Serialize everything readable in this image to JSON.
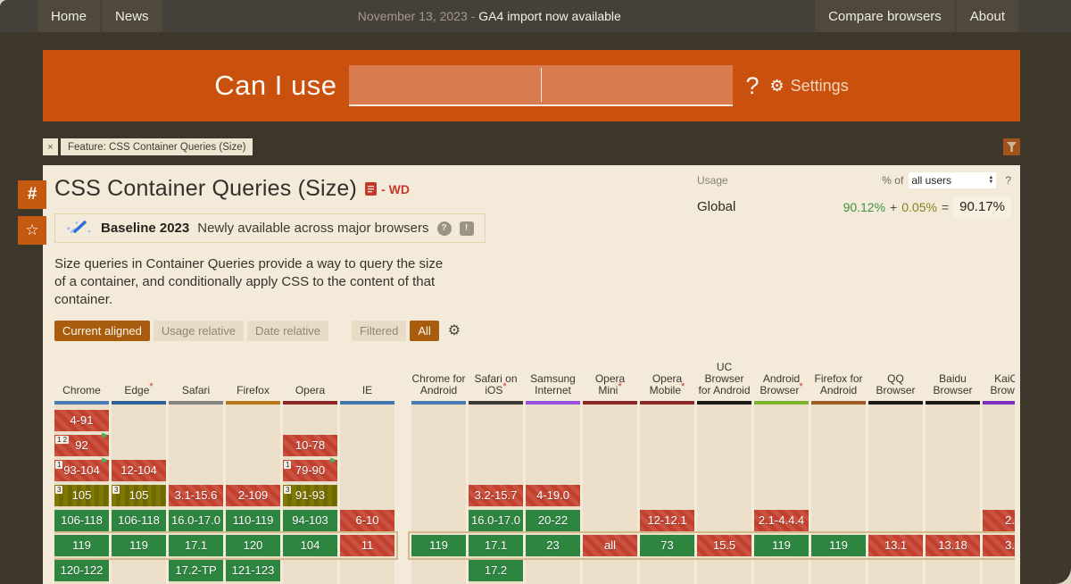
{
  "nav": {
    "home_label": "Home",
    "news_label": "News",
    "date_prefix": "November 13, 2023 -",
    "announcement": "GA4 import now available",
    "compare_label": "Compare browsers",
    "about_label": "About"
  },
  "header": {
    "logo": "Can I use",
    "question_mark": "?",
    "settings_label": "Settings"
  },
  "feature_tag": {
    "close_label": "×",
    "label": "Feature: CSS Container Queries (Size)"
  },
  "side": {
    "hash": "#",
    "star": "☆"
  },
  "page": {
    "title": "CSS Container Queries (Size)",
    "spec_status": "- WD",
    "baseline_title": "Baseline 2023",
    "baseline_subtitle": "Newly available across major browsers",
    "baseline_help": "?",
    "baseline_report": "!",
    "description": "Size queries in Container Queries provide a way to query the size of a container, and conditionally apply CSS to the content of that container."
  },
  "usage": {
    "label": "Usage",
    "percent_of": "% of",
    "select_value": "all users",
    "help": "?",
    "scope": "Global",
    "supported": "90.12%",
    "plus": "+",
    "partial": "0.05%",
    "equals": "=",
    "total": "90.17%"
  },
  "toolbar": {
    "current": "Current aligned",
    "usage_rel": "Usage relative",
    "date_rel": "Date relative",
    "filtered": "Filtered",
    "all": "All"
  },
  "colors": {
    "accent_orange": "#c9510d",
    "supported_green": "#2e8540",
    "unsupported_red": "#c4452f",
    "partial_olive": "#7a7400",
    "usage_green": "#3e9141",
    "usage_olive": "#85801f"
  },
  "table": {
    "current_row_index": 5,
    "sections": [
      {
        "name": "desktop",
        "columns": [
          {
            "label": "Chrome",
            "bar": "#4a7ab6",
            "star": false
          },
          {
            "label": "Edge",
            "bar": "#2d5f9a",
            "star": true
          },
          {
            "label": "Safari",
            "bar": "#858585",
            "star": false
          },
          {
            "label": "Firefox",
            "bar": "#b5791c",
            "star": false
          },
          {
            "label": "Opera",
            "bar": "#8e2727",
            "star": false
          },
          {
            "label": "IE",
            "bar": "#3f77ae",
            "star": false
          }
        ],
        "rows": [
          [
            {
              "t": "4-91",
              "s": "n"
            },
            null,
            null,
            null,
            null,
            null
          ],
          [
            {
              "t": "92",
              "s": "n",
              "notes": "1 2",
              "flag": true
            },
            null,
            null,
            null,
            {
              "t": "10-78",
              "s": "n"
            },
            null
          ],
          [
            {
              "t": "93-104",
              "s": "n",
              "notes": "1",
              "flag": true
            },
            {
              "t": "12-104",
              "s": "n"
            },
            null,
            null,
            {
              "t": "79-90",
              "s": "n",
              "notes": "1",
              "flag": true
            },
            null
          ],
          [
            {
              "t": "105",
              "s": "a",
              "notes": "3"
            },
            {
              "t": "105",
              "s": "a",
              "notes": "3"
            },
            {
              "t": "3.1-15.6",
              "s": "n"
            },
            {
              "t": "2-109",
              "s": "n"
            },
            {
              "t": "91-93",
              "s": "a",
              "notes": "3"
            },
            null
          ],
          [
            {
              "t": "106-118",
              "s": "y"
            },
            {
              "t": "106-118",
              "s": "y"
            },
            {
              "t": "16.0-17.0",
              "s": "y"
            },
            {
              "t": "110-119",
              "s": "y"
            },
            {
              "t": "94-103",
              "s": "y"
            },
            {
              "t": "6-10",
              "s": "n"
            }
          ],
          [
            {
              "t": "119",
              "s": "y"
            },
            {
              "t": "119",
              "s": "y"
            },
            {
              "t": "17.1",
              "s": "y"
            },
            {
              "t": "120",
              "s": "y"
            },
            {
              "t": "104",
              "s": "y"
            },
            {
              "t": "11",
              "s": "n"
            }
          ],
          [
            {
              "t": "120-122",
              "s": "y"
            },
            null,
            {
              "t": "17.2-TP",
              "s": "y"
            },
            {
              "t": "121-123",
              "s": "y"
            },
            null,
            null
          ]
        ]
      },
      {
        "name": "mobile",
        "columns": [
          {
            "label": "Chrome for Android",
            "bar": "#4a7ab6",
            "star": false
          },
          {
            "label": "Safari on iOS",
            "bar": "#3a3a3a",
            "star": true
          },
          {
            "label": "Samsung Internet",
            "bar": "#9753e0",
            "star": false
          },
          {
            "label": "Opera Mini",
            "bar": "#8e2727",
            "star": true
          },
          {
            "label": "Opera Mobile",
            "bar": "#8e2727",
            "star": true
          },
          {
            "label": "UC Browser for Android",
            "bar": "#1b1b1b",
            "star": false
          },
          {
            "label": "Android Browser",
            "bar": "#79b42a",
            "star": true
          },
          {
            "label": "Firefox for Android",
            "bar": "#9c5a24",
            "star": false
          },
          {
            "label": "QQ Browser",
            "bar": "#1b1b1b",
            "star": false
          },
          {
            "label": "Baidu Browser",
            "bar": "#1b1b1b",
            "star": false
          },
          {
            "label": "KaiOS Browser",
            "bar": "#7b2fbe",
            "star": false
          }
        ],
        "rows": [
          [
            null,
            null,
            null,
            null,
            null,
            null,
            null,
            null,
            null,
            null,
            null
          ],
          [
            null,
            null,
            null,
            null,
            null,
            null,
            null,
            null,
            null,
            null,
            null
          ],
          [
            null,
            null,
            null,
            null,
            null,
            null,
            null,
            null,
            null,
            null,
            null
          ],
          [
            null,
            {
              "t": "3.2-15.7",
              "s": "n"
            },
            {
              "t": "4-19.0",
              "s": "n"
            },
            null,
            null,
            null,
            null,
            null,
            null,
            null,
            null
          ],
          [
            null,
            {
              "t": "16.0-17.0",
              "s": "y"
            },
            {
              "t": "20-22",
              "s": "y"
            },
            null,
            {
              "t": "12-12.1",
              "s": "n"
            },
            null,
            {
              "t": "2.1-4.4.4",
              "s": "n"
            },
            null,
            null,
            null,
            {
              "t": "2.",
              "s": "n"
            }
          ],
          [
            {
              "t": "119",
              "s": "y"
            },
            {
              "t": "17.1",
              "s": "y"
            },
            {
              "t": "23",
              "s": "y"
            },
            {
              "t": "all",
              "s": "n"
            },
            {
              "t": "73",
              "s": "y"
            },
            {
              "t": "15.5",
              "s": "n"
            },
            {
              "t": "119",
              "s": "y"
            },
            {
              "t": "119",
              "s": "y"
            },
            {
              "t": "13.1",
              "s": "n"
            },
            {
              "t": "13.18",
              "s": "n"
            },
            {
              "t": "3.",
              "s": "n"
            }
          ],
          [
            null,
            {
              "t": "17.2",
              "s": "y"
            },
            null,
            null,
            null,
            null,
            null,
            null,
            null,
            null,
            null
          ]
        ]
      }
    ]
  }
}
